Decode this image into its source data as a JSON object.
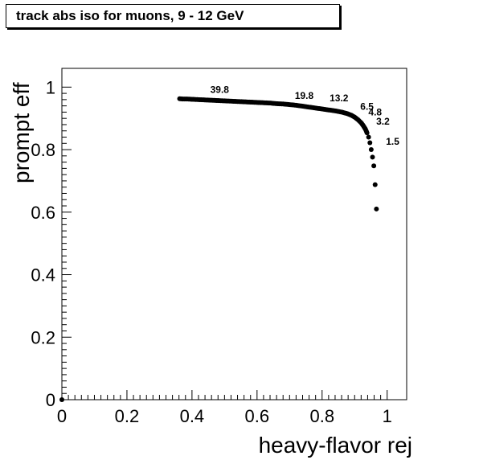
{
  "chart_data": {
    "type": "scatter",
    "title": "track abs iso for muons, 9 - 12 GeV",
    "xlabel": "heavy-flavor rej",
    "ylabel": "prompt eff",
    "xlim": [
      0,
      1.06
    ],
    "ylim": [
      0,
      1.06
    ],
    "x_ticks": [
      "0",
      "0.2",
      "0.4",
      "0.6",
      "0.8",
      "1"
    ],
    "y_ticks": [
      "0",
      "0.2",
      "0.4",
      "0.6",
      "0.8",
      "1"
    ],
    "grid": false,
    "series": [
      {
        "points": [
          [
            0.0,
            0.0
          ],
          [
            0.362,
            0.963
          ],
          [
            0.372,
            0.962
          ],
          [
            0.385,
            0.962
          ],
          [
            0.4,
            0.961
          ],
          [
            0.42,
            0.96
          ],
          [
            0.44,
            0.959
          ],
          [
            0.46,
            0.958
          ],
          [
            0.48,
            0.957
          ],
          [
            0.5,
            0.956
          ],
          [
            0.52,
            0.955
          ],
          [
            0.54,
            0.954
          ],
          [
            0.56,
            0.953
          ],
          [
            0.58,
            0.952
          ],
          [
            0.6,
            0.951
          ],
          [
            0.62,
            0.95
          ],
          [
            0.64,
            0.949
          ],
          [
            0.66,
            0.947
          ],
          [
            0.68,
            0.946
          ],
          [
            0.7,
            0.944
          ],
          [
            0.72,
            0.942
          ],
          [
            0.74,
            0.939
          ],
          [
            0.76,
            0.936
          ],
          [
            0.78,
            0.933
          ],
          [
            0.8,
            0.93
          ],
          [
            0.82,
            0.927
          ],
          [
            0.84,
            0.924
          ],
          [
            0.86,
            0.92
          ],
          [
            0.875,
            0.916
          ],
          [
            0.89,
            0.91
          ],
          [
            0.9,
            0.904
          ],
          [
            0.91,
            0.896
          ],
          [
            0.92,
            0.886
          ],
          [
            0.927,
            0.876
          ],
          [
            0.933,
            0.866
          ],
          [
            0.938,
            0.854
          ],
          [
            0.943,
            0.84
          ],
          [
            0.947,
            0.822
          ],
          [
            0.951,
            0.8
          ],
          [
            0.955,
            0.776
          ],
          [
            0.959,
            0.748
          ],
          [
            0.963,
            0.688
          ],
          [
            0.967,
            0.61
          ]
        ]
      }
    ],
    "annotations": [
      {
        "text": "39.8",
        "x": 0.485,
        "y": 0.982
      },
      {
        "text": "19.8",
        "x": 0.745,
        "y": 0.962
      },
      {
        "text": "13.2",
        "x": 0.852,
        "y": 0.955
      },
      {
        "text": "6.5",
        "x": 0.938,
        "y": 0.927
      },
      {
        "text": "4.8",
        "x": 0.963,
        "y": 0.91
      },
      {
        "text": "3.2",
        "x": 0.987,
        "y": 0.88
      },
      {
        "text": "1.5",
        "x": 1.017,
        "y": 0.815
      }
    ]
  }
}
